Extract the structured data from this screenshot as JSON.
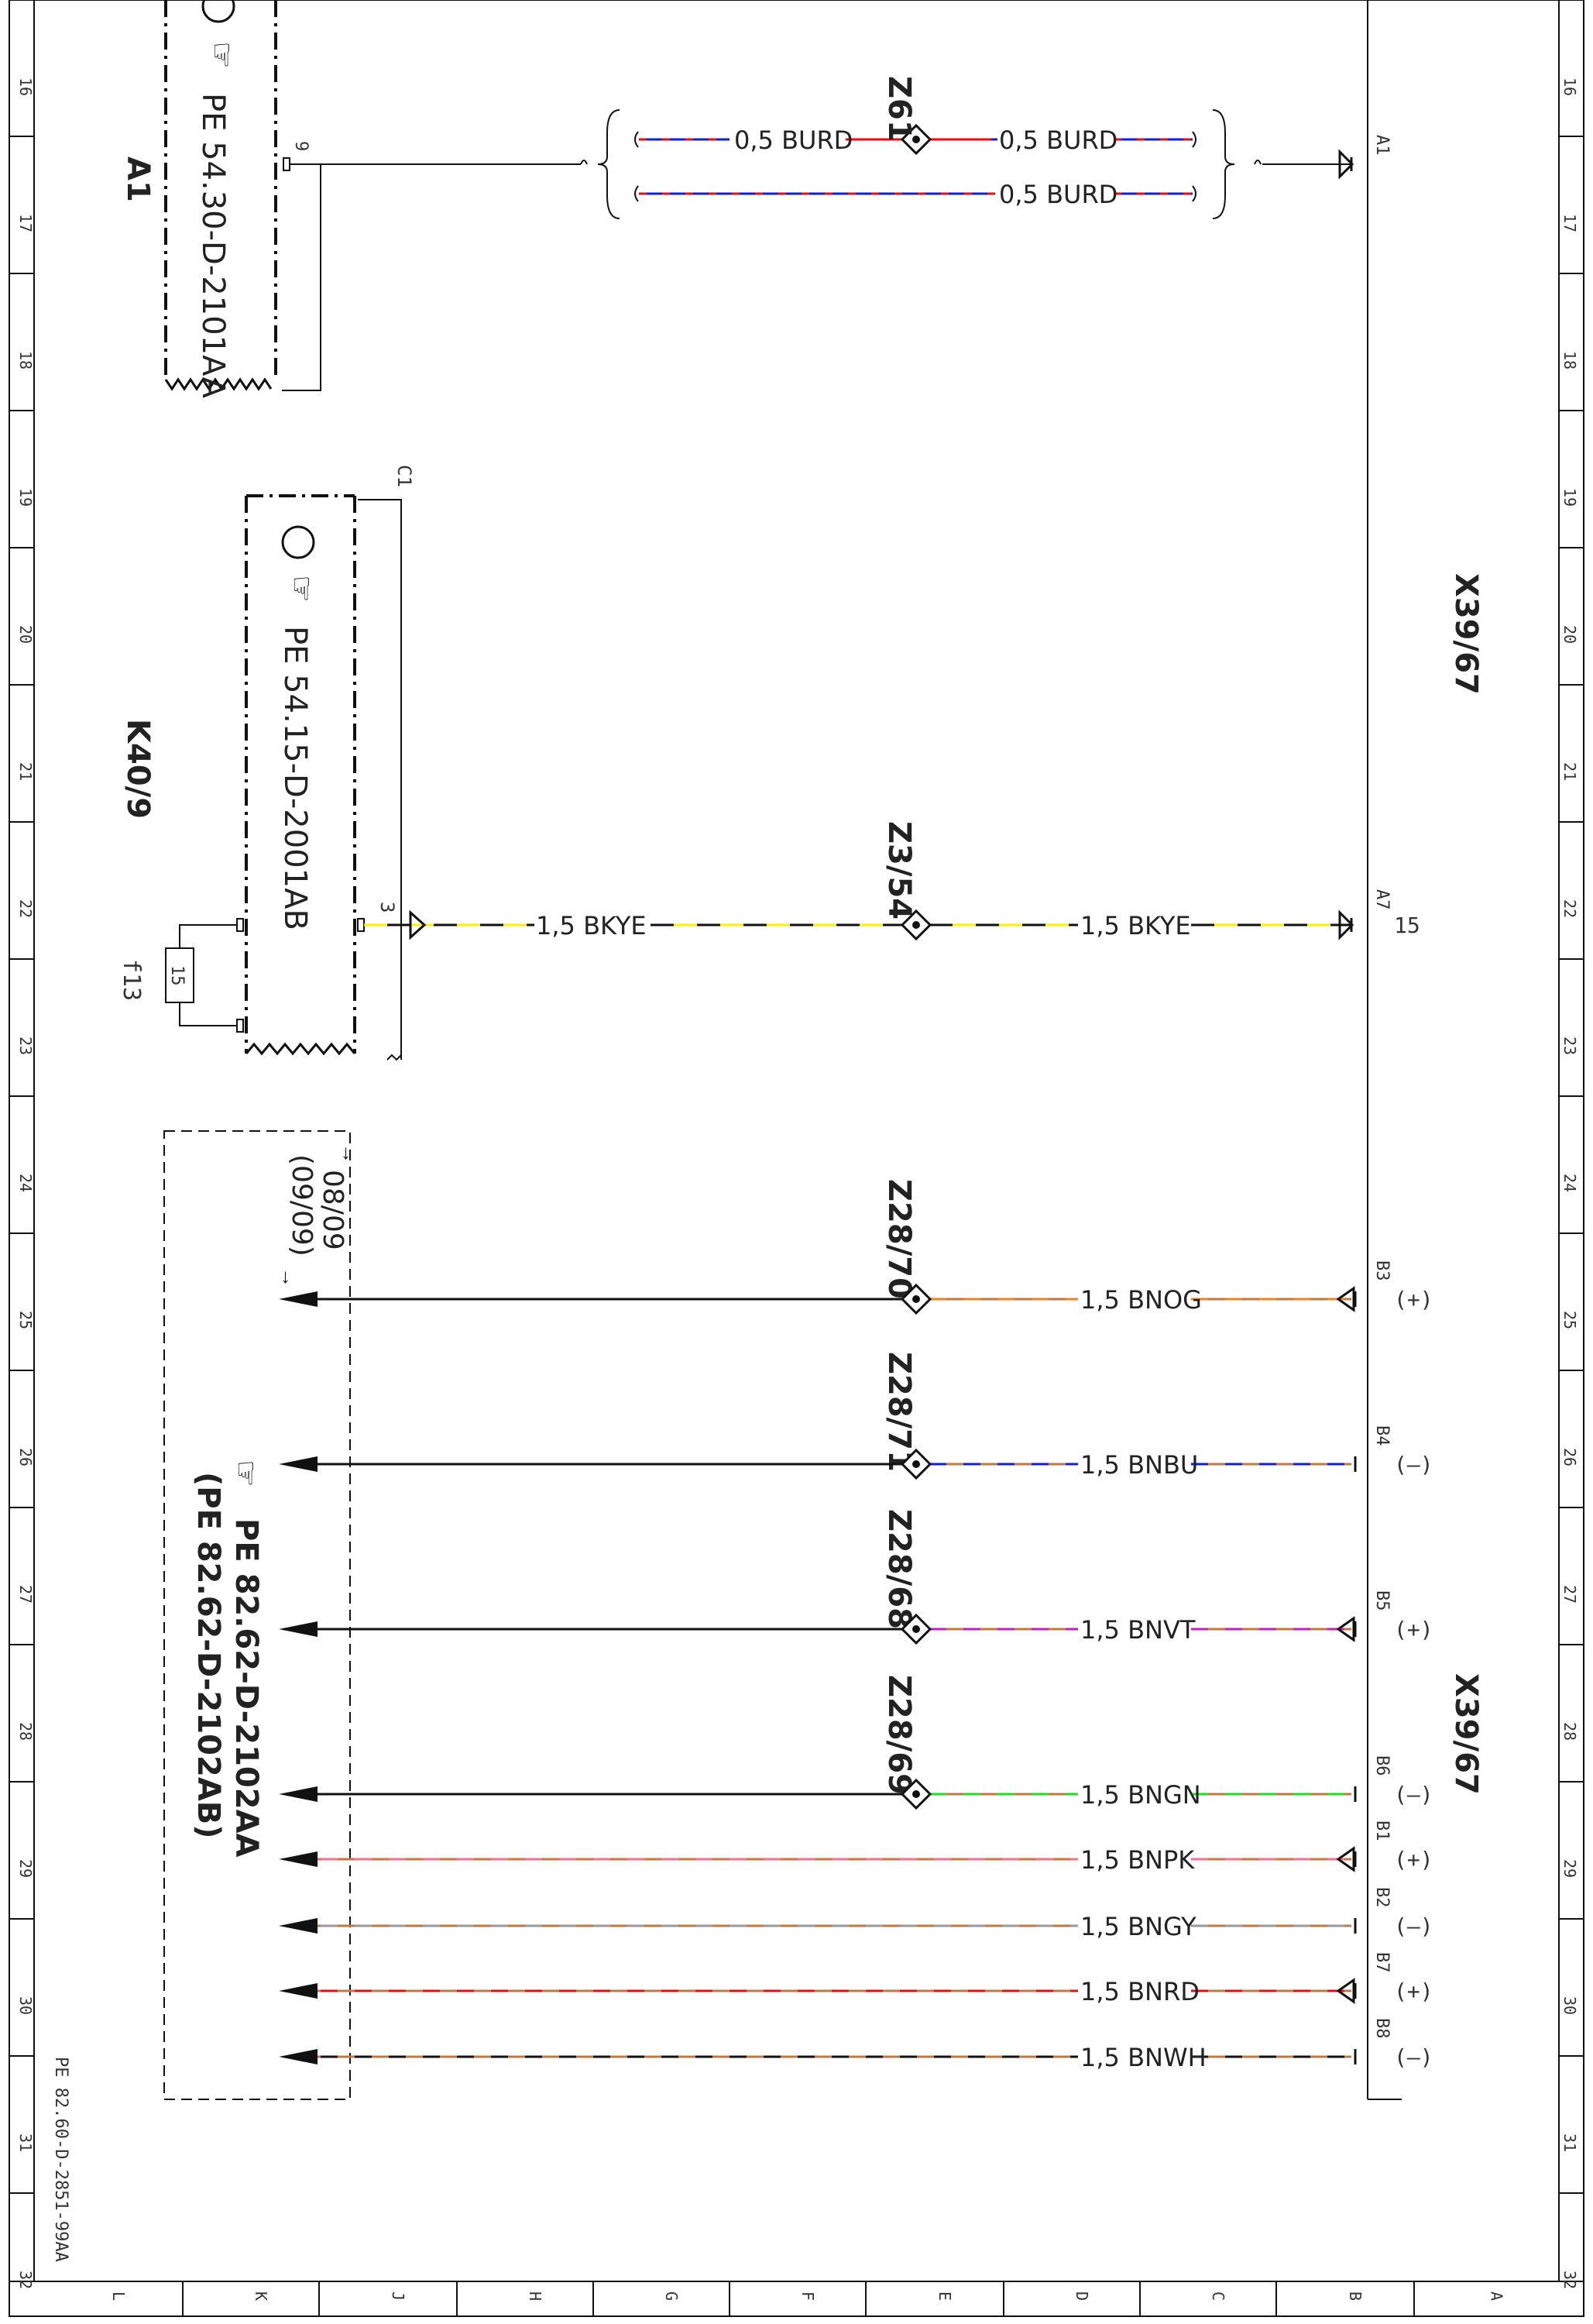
{
  "sheet": {
    "row_numbers": [
      "16",
      "17",
      "18",
      "19",
      "20",
      "21",
      "22",
      "23",
      "24",
      "25",
      "26",
      "27",
      "28",
      "29",
      "30",
      "31",
      "32"
    ],
    "column_letters": [
      "L",
      "K",
      "J",
      "H",
      "G",
      "F",
      "E",
      "D",
      "C",
      "B",
      "A"
    ],
    "drawing_number": "PE 82.60-D-2851-99AA"
  },
  "components": {
    "a1": {
      "id": "A1",
      "ref": "PE 54.30-D-2101AA",
      "pin": "9"
    },
    "k40": {
      "id": "K40/9",
      "ref": "PE 54.15-D-2001AB",
      "pin_c1": "C1",
      "pin_3": "3",
      "fuse_id": "f13",
      "fuse_value": "15"
    },
    "x39_top": {
      "id": "X39/67"
    },
    "x39_bottom": {
      "id": "X39/67"
    },
    "ref_box": {
      "ref1": "PE 82.62-D-2102AA",
      "ref2": "(PE 82.62-D-2102AB)",
      "arrow1": "08/09",
      "arrow2": "(09/09)"
    }
  },
  "splices": {
    "z61": "Z61",
    "z3": "Z3/54",
    "z28_70": "Z28/70",
    "z28_71": "Z28/71",
    "z28_68": "Z28/68",
    "z28_69": "Z28/69"
  },
  "wires": {
    "burd_left": "0,5 BURD",
    "burd_right": "0,5 BURD",
    "burd_lower": "0,5 BURD",
    "bkye_left": "1,5 BKYE",
    "bkye_right": "1,5 BKYE",
    "bnog": "1,5 BNOG",
    "bnbu": "1,5 BNBU",
    "bnvt": "1,5 BNVT",
    "bngn": "1,5 BNGN",
    "bnpk": "1,5 BNPK",
    "bngy": "1,5 BNGY",
    "bnrd": "1,5 BNRD",
    "bnwh": "1,5 BNWH"
  },
  "pins": {
    "a1": "A1",
    "a7": "A7",
    "a7_num": "15",
    "b3": "B3",
    "b3_pol": "(+)",
    "b4": "B4",
    "b4_pol": "(–)",
    "b5": "B5",
    "b5_pol": "(+)",
    "b6": "B6",
    "b6_pol": "(–)",
    "b1": "B1",
    "b1_pol": "(+)",
    "b2": "B2",
    "b2_pol": "(–)",
    "b7": "B7",
    "b7_pol": "(+)",
    "b8": "B8",
    "b8_pol": "(–)"
  },
  "colors": {
    "line": "#111111",
    "brown": "#c07a40",
    "red": "#e01010",
    "blue": "#1020d0",
    "yellow": "#ffee00",
    "orange": "#f08020",
    "violet": "#c020c0",
    "green": "#20dd20",
    "pink": "#f07090",
    "grey": "#999999",
    "black": "#111111",
    "white": "#f4f4f4"
  }
}
